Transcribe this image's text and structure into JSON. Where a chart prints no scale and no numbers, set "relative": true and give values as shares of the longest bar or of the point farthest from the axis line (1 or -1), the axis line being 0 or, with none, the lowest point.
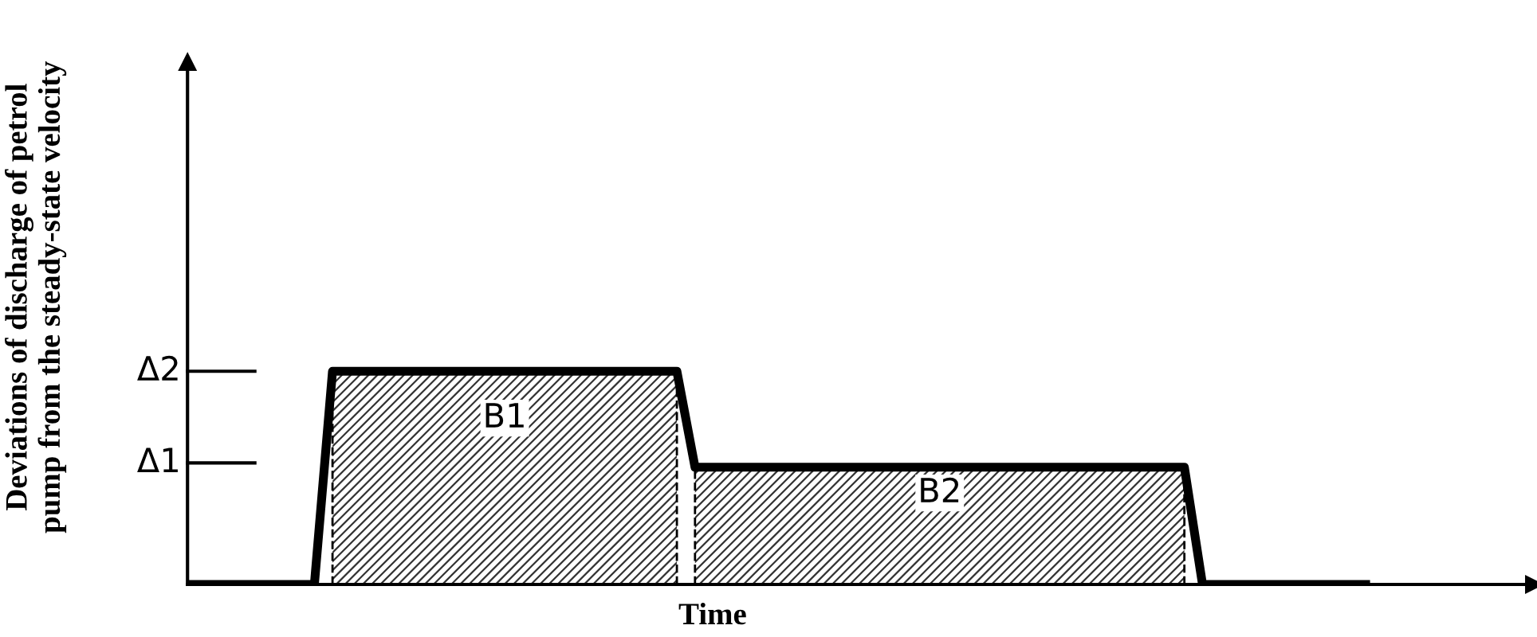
{
  "chart_data": {
    "type": "line",
    "relative": true,
    "xlabel": "Time",
    "ylabel": "Deviations of discharge of petrol\npump from the steady-state velocity",
    "categories": [
      null,
      null,
      null,
      null,
      null,
      null,
      null,
      null,
      null,
      null,
      null,
      null,
      null,
      null,
      null,
      null,
      null,
      null,
      null,
      null,
      null,
      null,
      null,
      null,
      null,
      null,
      null,
      null,
      null,
      null,
      null,
      null,
      null,
      null,
      null,
      null,
      null,
      null,
      null,
      null,
      null,
      null,
      null,
      null,
      null,
      null,
      null,
      null,
      null,
      null,
      null,
      null,
      null,
      null,
      null,
      null,
      null,
      null,
      null,
      null,
      null,
      null,
      null,
      null,
      null,
      null
    ],
    "series": [
      {
        "color": "#000000",
        "values": [
          0,
          0,
          0,
          0,
          0,
          0,
          0,
          0,
          1,
          1,
          1,
          1,
          1,
          1,
          1,
          1,
          1,
          1,
          1,
          1,
          1,
          1,
          1,
          1,
          1,
          1,
          1,
          1,
          0.55,
          0.55,
          0.55,
          0.55,
          0.55,
          0.55,
          0.55,
          0.55,
          0.55,
          0.55,
          0.55,
          0.55,
          0.55,
          0.55,
          0.55,
          0.55,
          0.55,
          0.55,
          0.55,
          0.55,
          0.55,
          0.55,
          0.55,
          0.55,
          0.55,
          0.55,
          0.55,
          0.55,
          0,
          0,
          0,
          0,
          0,
          0,
          0,
          0,
          0,
          0
        ]
      },
      {
        "type": "area",
        "color": "#333333",
        "values": [
          null,
          null,
          null,
          null,
          null,
          null,
          null,
          null,
          1,
          1,
          1,
          1,
          1,
          1,
          1,
          1,
          1,
          1,
          1,
          1,
          1,
          1,
          1,
          1,
          1,
          1,
          1,
          1,
          null,
          null,
          null,
          null,
          null,
          null,
          null,
          null,
          null,
          null,
          null,
          null,
          null,
          null,
          null,
          null,
          null,
          null,
          null,
          null,
          null,
          null,
          null,
          null,
          null,
          null,
          null,
          null,
          null,
          null,
          null,
          null,
          null,
          null,
          null,
          null,
          null,
          null
        ]
      },
      {
        "type": "area",
        "color": "#333333",
        "values": [
          null,
          null,
          null,
          null,
          null,
          null,
          null,
          null,
          null,
          null,
          null,
          null,
          null,
          null,
          null,
          null,
          null,
          null,
          null,
          null,
          null,
          null,
          null,
          null,
          null,
          null,
          null,
          null,
          0.55,
          0.55,
          0.55,
          0.55,
          0.55,
          0.55,
          0.55,
          0.55,
          0.55,
          0.55,
          0.55,
          0.55,
          0.55,
          0.55,
          0.55,
          0.55,
          0.55,
          0.55,
          0.55,
          0.55,
          0.55,
          0.55,
          0.55,
          0.55,
          0.55,
          0.55,
          0.55,
          0.55,
          null,
          null,
          null,
          null,
          null,
          null,
          null,
          null,
          null,
          null
        ]
      }
    ],
    "annotations": [
      "B1",
      "B2"
    ],
    "ref_lines": [
      {
        "axis": "y",
        "value": 1,
        "label": "Δ2"
      },
      {
        "axis": "y",
        "value": 0.57,
        "label": "Δ1"
      }
    ],
    "marker": "none",
    "line_style": "solid"
  }
}
